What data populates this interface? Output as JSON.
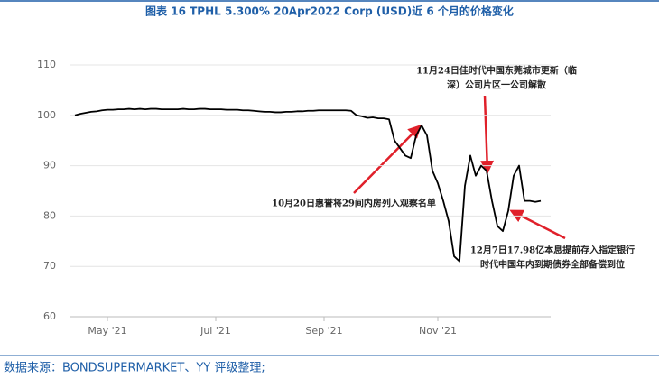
{
  "chart_data": {
    "type": "line",
    "title": "图表 16   TPHL 5.300% 20Apr2022 Corp (USD)近 6 个月的价格变化",
    "source": "数据来源：BONDSUPERMARKET、YY 评级整理;",
    "categories": [
      null,
      null,
      null,
      null,
      null,
      null,
      "May '21",
      null,
      null,
      null,
      null,
      null,
      null,
      null,
      null,
      null,
      null,
      null,
      null,
      null,
      null,
      null,
      null,
      null,
      null,
      null,
      "Jul '21",
      null,
      null,
      null,
      null,
      null,
      null,
      null,
      null,
      null,
      null,
      null,
      null,
      null,
      null,
      null,
      null,
      null,
      null,
      null,
      "Sep '21",
      null,
      null,
      null,
      null,
      null,
      null,
      null,
      null,
      null,
      null,
      null,
      null,
      null,
      null,
      null,
      null,
      null,
      null,
      null,
      null,
      "Nov '21",
      null,
      null,
      null,
      null,
      null,
      null,
      null,
      null,
      null,
      null,
      null,
      null,
      null,
      null,
      null,
      null,
      null,
      null,
      null
    ],
    "values": [
      100,
      100.3,
      100.5,
      100.7,
      100.8,
      101,
      101.1,
      101.1,
      101.2,
      101.2,
      101.3,
      101.2,
      101.3,
      101.2,
      101.3,
      101.3,
      101.2,
      101.2,
      101.2,
      101.2,
      101.3,
      101.2,
      101.2,
      101.3,
      101.3,
      101.2,
      101.2,
      101.2,
      101.1,
      101.1,
      101.1,
      101,
      101,
      100.9,
      100.8,
      100.7,
      100.7,
      100.6,
      100.6,
      100.7,
      100.7,
      100.8,
      100.8,
      100.9,
      100.9,
      101,
      101,
      101,
      101,
      101,
      101,
      100.9,
      100,
      99.8,
      99.5,
      99.6,
      99.4,
      99.4,
      99.2,
      95,
      93.5,
      92,
      91.5,
      96,
      98,
      96,
      89,
      86.5,
      83,
      79,
      72,
      71,
      86,
      92,
      88,
      90,
      89,
      83,
      78,
      77,
      81,
      88,
      90,
      83,
      83,
      82.8,
      83
    ],
    "color": "#000000",
    "ylim": [
      60,
      110
    ],
    "yticks": [
      60,
      70,
      80,
      90,
      100,
      110
    ],
    "grid": true,
    "annotations": [
      {
        "lines": [
          "11月24日佳时代中国东莞城市更新（临",
          "深）公司片区一公司解散"
        ]
      },
      {
        "lines": [
          "10月20日惠誉将29间内房列入观察名单"
        ]
      },
      {
        "lines": [
          "12月7日17.98亿本息提前存入指定银行",
          "时代中国年内到期债券全部备偿到位"
        ]
      }
    ]
  }
}
